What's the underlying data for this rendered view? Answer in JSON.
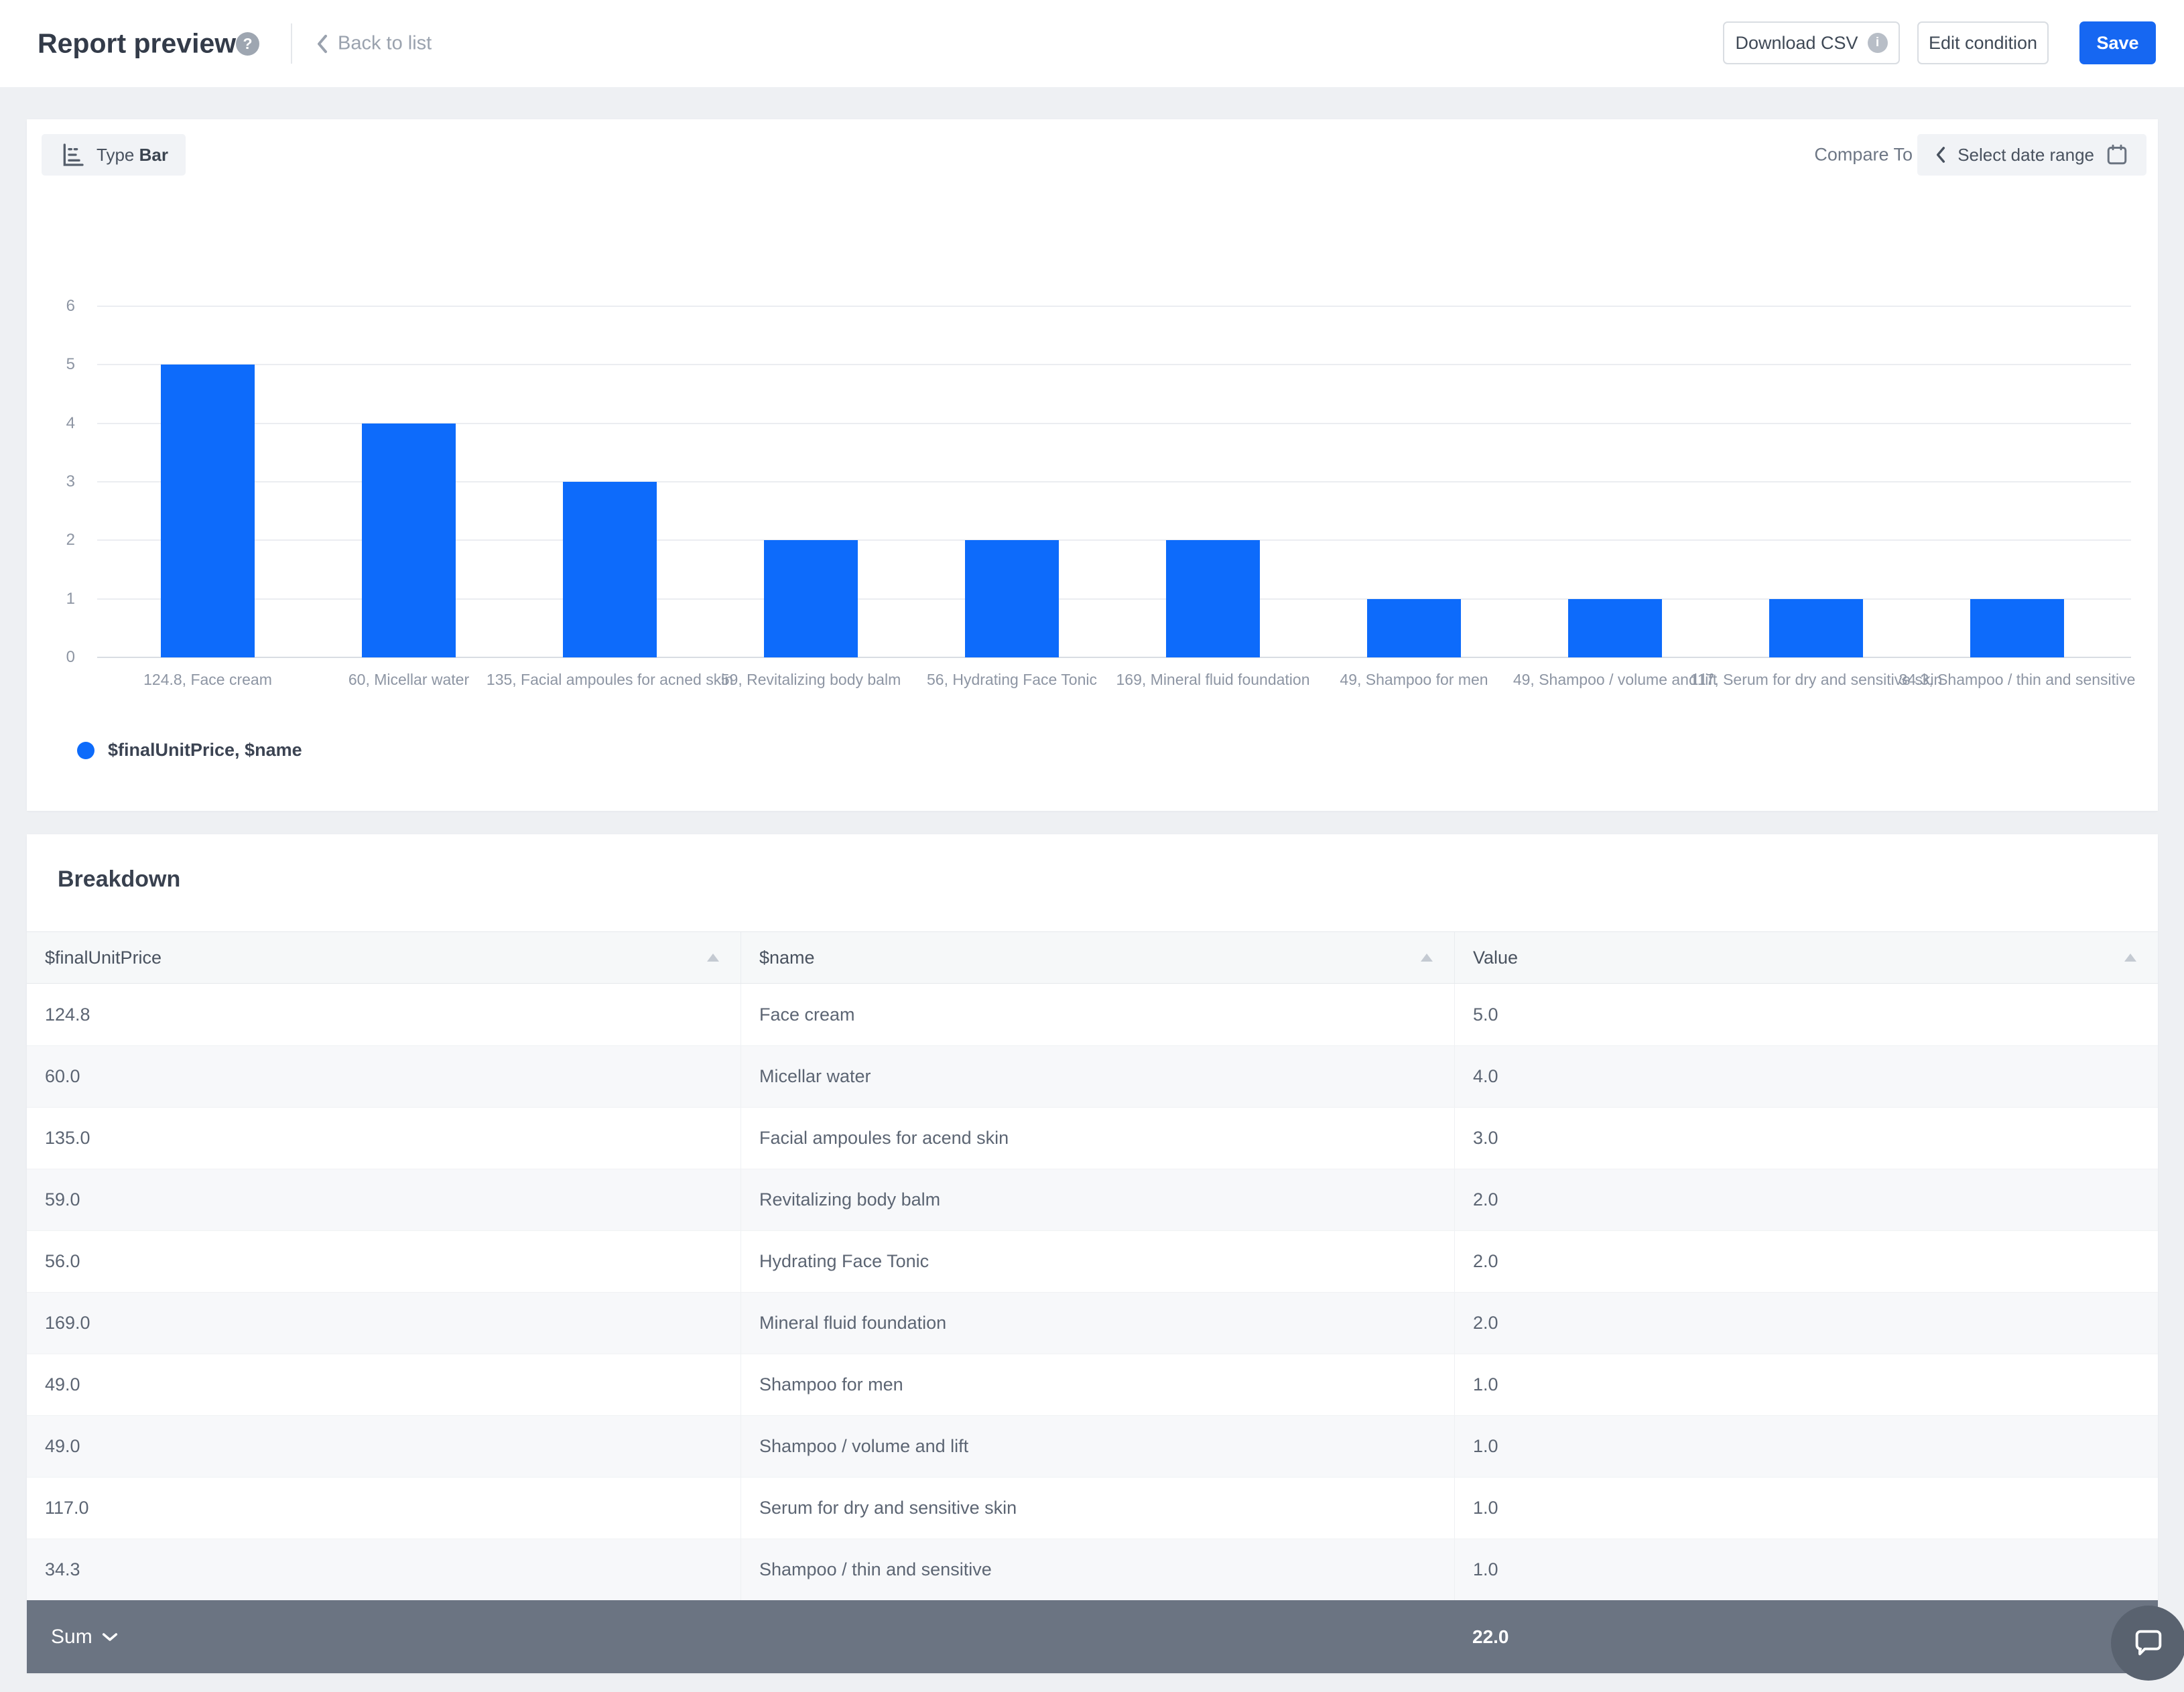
{
  "header": {
    "title": "Report preview",
    "back_label": "Back to list",
    "download_csv_label": "Download CSV",
    "edit_condition_label": "Edit condition",
    "save_label": "Save"
  },
  "icons": {
    "help_glyph": "?",
    "info_glyph": "i"
  },
  "chart_controls": {
    "type_label": "Type",
    "type_value": "Bar",
    "compare_to_label": "Compare To",
    "date_range_placeholder": "Select date range"
  },
  "chart_data": {
    "type": "bar",
    "title": "",
    "xlabel": "",
    "ylabel": "",
    "categories": [
      "124.8, Face cream",
      "60, Micellar water",
      "135, Facial ampoules for acned skin",
      "59, Revitalizing body balm",
      "56, Hydrating Face Tonic",
      "169, Mineral fluid foundation",
      "49, Shampoo for men",
      "49, Shampoo / volume and lift",
      "117, Serum for dry and sensitive skin",
      "34.3, Shampoo / thin and sensitive"
    ],
    "values": [
      5,
      4,
      3,
      2,
      2,
      2,
      1,
      1,
      1,
      1
    ],
    "y_ticks": [
      0,
      1,
      2,
      3,
      4,
      5,
      6
    ],
    "ylim": [
      0,
      6
    ],
    "grid": true,
    "legend": "$finalUnitPrice, $name",
    "legend_position": "bottom-left",
    "bar_color": "#0d6bfb"
  },
  "breakdown": {
    "title": "Breakdown",
    "columns": [
      "$finalUnitPrice",
      "$name",
      "Value"
    ],
    "rows": [
      [
        "124.8",
        "Face cream",
        "5.0"
      ],
      [
        "60.0",
        "Micellar water",
        "4.0"
      ],
      [
        "135.0",
        "Facial ampoules for acend skin",
        "3.0"
      ],
      [
        "59.0",
        "Revitalizing body balm",
        "2.0"
      ],
      [
        "56.0",
        "Hydrating Face Tonic",
        "2.0"
      ],
      [
        "169.0",
        "Mineral fluid foundation",
        "2.0"
      ],
      [
        "49.0",
        "Shampoo for men",
        "1.0"
      ],
      [
        "49.0",
        "Shampoo / volume and lift",
        "1.0"
      ],
      [
        "117.0",
        "Serum for dry and sensitive skin",
        "1.0"
      ],
      [
        "34.3",
        "Shampoo / thin and sensitive",
        "1.0"
      ]
    ],
    "footer": {
      "aggregate_label": "Sum",
      "total": "22.0"
    }
  },
  "colors": {
    "accent_blue": "#0d6bfb",
    "save_button_blue": "#1667f2",
    "footer_bar": "#6b7482",
    "page_background": "#eef0f3"
  }
}
